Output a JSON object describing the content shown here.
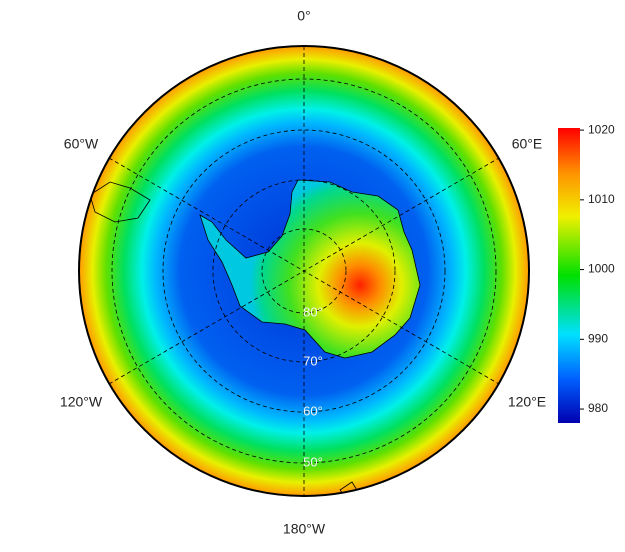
{
  "map": {
    "longitude_labels": [
      "0°",
      "60°E",
      "120°E",
      "180°W",
      "120°W",
      "60°W"
    ],
    "latitude_labels": [
      "80°",
      "70°",
      "60°",
      "50°"
    ]
  },
  "colorbar": {
    "range": [
      978,
      1020.3
    ],
    "ticks": [
      980,
      990,
      1000,
      1010,
      1020
    ]
  }
}
